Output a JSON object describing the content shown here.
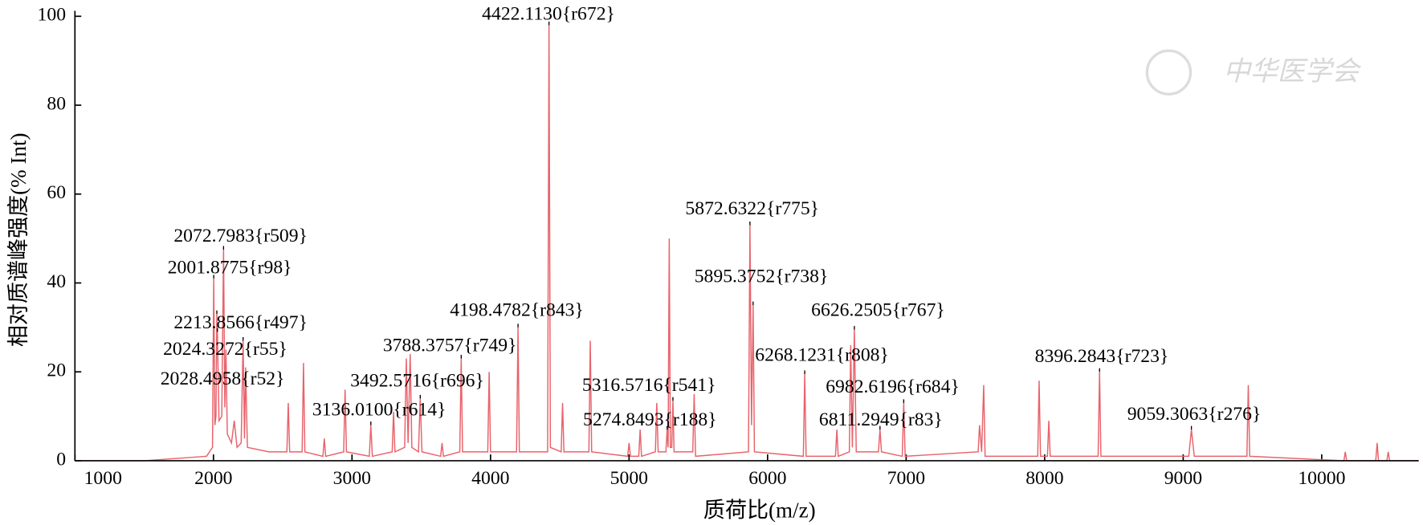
{
  "chart_data": {
    "type": "line",
    "x_label": "质荷比(m/z)",
    "y_label": "相对质谱峰强度(% Int)",
    "watermark": "中华医学会",
    "xlim": [
      1000,
      10700
    ],
    "xticks": [
      1000,
      2000,
      3000,
      4000,
      5000,
      6000,
      7000,
      8000,
      9000,
      10000
    ],
    "ylim": [
      0,
      100
    ],
    "yticks": [
      0,
      20,
      40,
      60,
      80,
      100
    ],
    "series": [
      {
        "color": "#e8636b",
        "x": [
          1000,
          1500,
          1950,
          1993,
          2001.9,
          2010,
          2018,
          2024.3,
          2028.5,
          2040,
          2060,
          2072.8,
          2082,
          2090,
          2100,
          2130,
          2150,
          2170,
          2200,
          2213.9,
          2224,
          2232,
          2245,
          2400,
          2530,
          2540,
          2550,
          2640,
          2650,
          2660,
          2790,
          2800,
          2810,
          2940,
          2950,
          2960,
          3125,
          3136,
          3147,
          3290,
          3300,
          3310,
          3380,
          3392,
          3405,
          3420,
          3432,
          3480,
          3492.6,
          3505,
          3640,
          3650,
          3660,
          3778,
          3788.4,
          3798,
          3980,
          3990,
          4000,
          4188,
          4198.5,
          4208,
          4412,
          4422.1,
          4432,
          4510,
          4520,
          4530,
          4710,
          4720,
          4730,
          4990,
          5000,
          5010,
          5070,
          5080,
          5090,
          5190,
          5200,
          5210,
          5266,
          5274.8,
          5282,
          5290,
          5298,
          5308,
          5316.6,
          5325,
          5460,
          5470,
          5480,
          5862,
          5872.6,
          5884,
          5895.4,
          5905,
          6258,
          6268.1,
          6278,
          6490,
          6500,
          6510,
          6590,
          6600,
          6612,
          6626.3,
          6640,
          6800,
          6811.3,
          6822,
          6972,
          6982.6,
          6993,
          7520,
          7530,
          7545,
          7560,
          7570,
          7950,
          7960,
          7970,
          8020,
          8030,
          8040,
          8386,
          8396.3,
          8406,
          9040,
          9059.3,
          9080,
          9460,
          9470,
          9480,
          10160,
          10170,
          10180,
          10390,
          10400,
          10410,
          10470,
          10480,
          10490,
          10700
        ],
        "values": [
          0,
          0,
          1,
          3,
          41,
          8,
          10,
          33,
          29,
          9,
          10,
          47.5,
          12,
          25,
          6,
          4,
          9,
          3,
          4,
          27,
          5,
          21,
          3,
          2,
          2,
          13,
          2,
          2,
          22,
          2,
          1,
          5,
          1,
          2,
          16,
          2,
          1,
          8,
          1,
          2,
          11,
          2,
          3,
          23,
          4,
          24,
          3,
          2,
          14,
          2,
          1,
          4,
          1,
          2,
          23,
          2,
          2,
          20,
          2,
          2,
          30,
          2,
          2,
          98,
          3,
          2,
          13,
          2,
          2,
          27,
          2,
          1,
          4,
          1,
          1,
          7,
          1,
          2,
          13,
          2,
          2,
          7,
          3,
          50,
          3,
          3,
          13.5,
          2,
          2,
          15,
          1,
          2,
          53,
          8,
          35,
          2,
          1,
          19.5,
          1,
          1,
          7,
          1,
          2,
          26,
          3,
          29.5,
          2,
          2,
          7,
          2,
          1,
          13,
          1,
          2,
          8,
          2,
          17,
          1,
          1,
          18,
          1,
          1,
          9,
          1,
          1,
          20,
          1,
          1,
          7,
          1,
          1,
          17,
          1,
          0,
          2,
          0,
          0,
          4,
          0,
          0,
          2,
          0,
          0
        ]
      }
    ],
    "annotations": [
      {
        "label": "4422.1130{r672}",
        "x": 4422.113,
        "y": 98
      },
      {
        "label": "2072.7983{r509}",
        "x": 2072.7983,
        "y": 47.5
      },
      {
        "label": "2001.8775{r98}",
        "x": 2001.8775,
        "y": 41
      },
      {
        "label": "2213.8566{r497}",
        "x": 2213.8566,
        "y": 27
      },
      {
        "label": "2024.3272{r55}",
        "x": 2024.3272,
        "y": 33
      },
      {
        "label": "2028.4958{r52}",
        "x": 2028.4958,
        "y": 29
      },
      {
        "label": "3136.0100{r614}",
        "x": 3136.01,
        "y": 8
      },
      {
        "label": "3492.5716{r696}",
        "x": 3492.5716,
        "y": 14
      },
      {
        "label": "3788.3757{r749}",
        "x": 3788.3757,
        "y": 23
      },
      {
        "label": "4198.4782{r843}",
        "x": 4198.4782,
        "y": 30
      },
      {
        "label": "5316.5716{r541}",
        "x": 5316.5716,
        "y": 13.5
      },
      {
        "label": "5274.8493{r188}",
        "x": 5274.8493,
        "y": 7
      },
      {
        "label": "5872.6322{r775}",
        "x": 5872.6322,
        "y": 53
      },
      {
        "label": "5895.3752{r738}",
        "x": 5895.3752,
        "y": 35
      },
      {
        "label": "6626.2505{r767}",
        "x": 6626.2505,
        "y": 29.5
      },
      {
        "label": "6268.1231{r808}",
        "x": 6268.1231,
        "y": 19.5
      },
      {
        "label": "6982.6196{r684}",
        "x": 6982.6196,
        "y": 13
      },
      {
        "label": "6811.2949{r83}",
        "x": 6811.2949,
        "y": 7
      },
      {
        "label": "8396.2843{r723}",
        "x": 8396.2843,
        "y": 20
      },
      {
        "label": "9059.3063{r276}",
        "x": 9059.3063,
        "y": 7
      }
    ]
  }
}
